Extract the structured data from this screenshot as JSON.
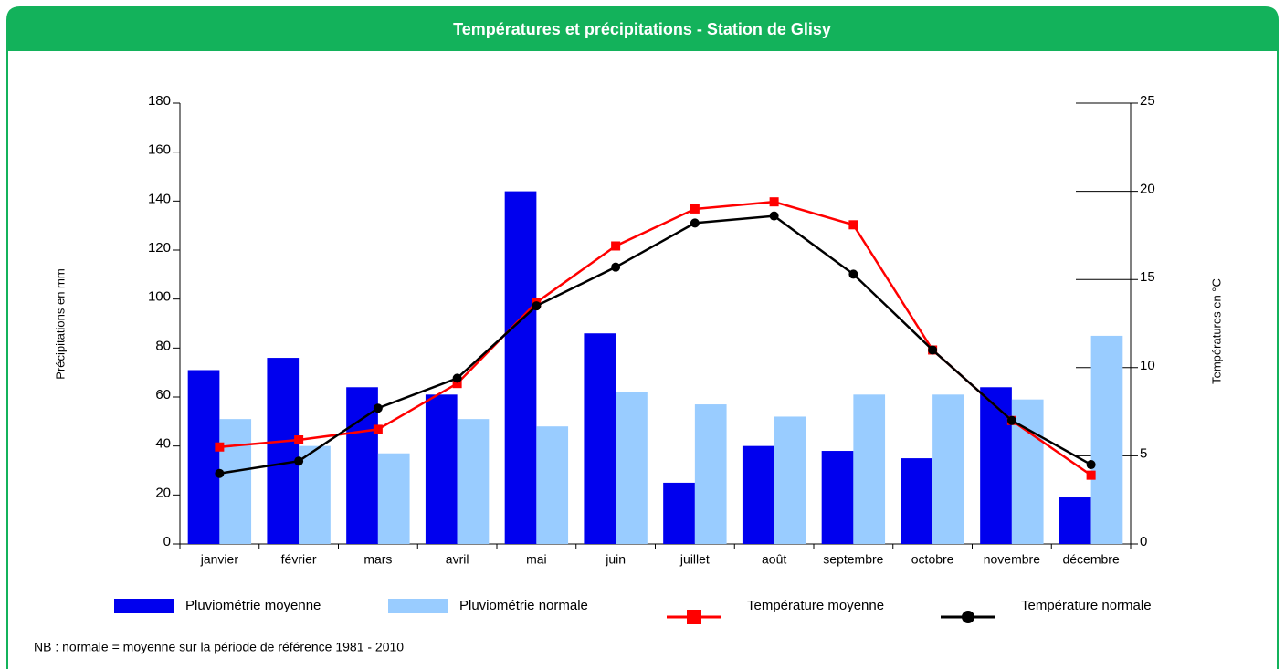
{
  "chart_data": {
    "type": "bar",
    "title": "Températures et précipitations - Station de Glisy",
    "y_label": "Précipitations en mm",
    "y2_label": "Températures en °C",
    "note": "NB : normale = moyenne sur la période de référence 1981 - 2010",
    "categories": [
      "janvier",
      "février",
      "mars",
      "avril",
      "mai",
      "juin",
      "juillet",
      "août",
      "septembre",
      "octobre",
      "novembre",
      "décembre"
    ],
    "series": [
      {
        "name": "Pluviométrie moyenne",
        "type": "bar",
        "color": "#0000ee",
        "values": [
          71,
          76,
          64,
          61,
          144,
          86,
          25,
          40,
          38,
          35,
          64,
          19
        ]
      },
      {
        "name": "Pluviométrie normale",
        "type": "bar",
        "color": "#99ccff",
        "values": [
          51,
          40,
          37,
          51,
          48,
          62,
          57,
          52,
          61,
          61,
          59,
          85
        ]
      },
      {
        "name": "Température moyenne",
        "type": "line",
        "axis": "y2",
        "marker": "square",
        "color": "#ff0000",
        "values": [
          5.5,
          5.9,
          6.5,
          9.1,
          13.7,
          16.9,
          19.0,
          19.4,
          18.1,
          11.0,
          7.0,
          3.9
        ]
      },
      {
        "name": "Température normale",
        "type": "line",
        "axis": "y2",
        "marker": "circle",
        "color": "#000000",
        "values": [
          4.0,
          4.7,
          7.7,
          9.4,
          13.5,
          15.7,
          18.2,
          18.6,
          15.3,
          11.0,
          7.0,
          4.5
        ]
      }
    ],
    "ylim": [
      0,
      180
    ],
    "yticks": [
      0,
      20,
      40,
      60,
      80,
      100,
      120,
      140,
      160,
      180
    ],
    "y2lim": [
      0,
      25
    ],
    "y2ticks": [
      0,
      5,
      10,
      15,
      20,
      25
    ]
  }
}
